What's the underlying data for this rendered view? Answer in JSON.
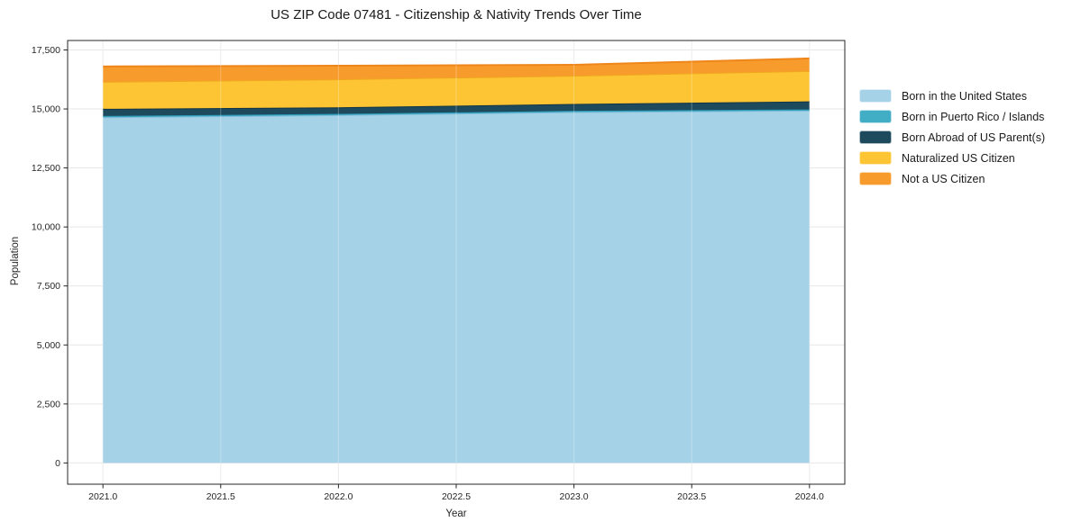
{
  "title": "US ZIP Code 07481 - Citizenship & Nativity Trends Over Time",
  "chart_data": {
    "type": "area",
    "stacked": true,
    "title": "US ZIP Code 07481 - Citizenship & Nativity Trends Over Time",
    "xlabel": "Year",
    "ylabel": "Population",
    "x": [
      2021,
      2022,
      2023,
      2024
    ],
    "series": [
      {
        "name": "Born in the United States",
        "values": [
          14650,
          14740,
          14870,
          14930
        ],
        "fill": "#a6d2e7",
        "line": "#7fbcd9"
      },
      {
        "name": "Born in Puerto Rico / Islands",
        "values": [
          50,
          50,
          50,
          50
        ],
        "fill": "#41aec6",
        "line": "#2d9cb8"
      },
      {
        "name": "Born Abroad of US Parent(s)",
        "values": [
          305,
          280,
          290,
          340
        ],
        "fill": "#1d4a5d",
        "line": "#143646"
      },
      {
        "name": "Naturalized US Citizen",
        "values": [
          1145,
          1185,
          1200,
          1290
        ],
        "fill": "#fdc433",
        "line": "#f0a81f"
      },
      {
        "name": "Not a US Citizen",
        "values": [
          650,
          575,
          460,
          530
        ],
        "fill": "#f89b2d",
        "line": "#ee861a"
      }
    ],
    "stack_totals": [
      16800,
      16830,
      16870,
      17140
    ],
    "xlim": [
      2020.85,
      2024.15
    ],
    "ylim": [
      -900,
      17900
    ],
    "xticks": {
      "values": [
        2021.0,
        2021.5,
        2022.0,
        2022.5,
        2023.0,
        2023.5,
        2024.0
      ],
      "labels": [
        "2021.0",
        "2021.5",
        "2022.0",
        "2022.5",
        "2023.0",
        "2023.5",
        "2024.0"
      ]
    },
    "yticks": {
      "values": [
        0,
        2500,
        5000,
        7500,
        10000,
        12500,
        15000,
        17500
      ],
      "labels": [
        "0",
        "2,500",
        "5,000",
        "7,500",
        "10,000",
        "12,500",
        "15,000",
        "17,500"
      ]
    },
    "grid": true,
    "legend_position": "right-outside",
    "colors": {
      "background": "#ffffff",
      "spine": "#262626",
      "grid": "#e7e7e7",
      "tick_text": "#262626",
      "title_text": "#1a1a1a"
    }
  }
}
